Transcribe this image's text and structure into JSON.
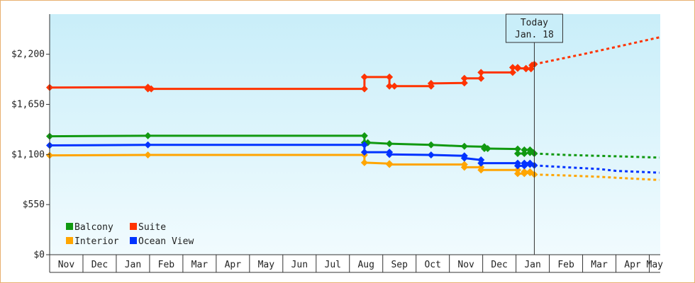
{
  "chart_data": {
    "type": "line",
    "y_ticks": [
      "$0",
      "$550",
      "$1,100",
      "$1,650",
      "$2,200"
    ],
    "ylim": [
      0,
      2640
    ],
    "months": [
      "Nov",
      "Dec",
      "Jan",
      "Feb",
      "Mar",
      "Apr",
      "May",
      "Jun",
      "Jul",
      "Aug",
      "Sep",
      "Oct",
      "Nov",
      "Dec",
      "Jan",
      "Feb",
      "Mar",
      "Apr",
      "May"
    ],
    "x_range_month_index": [
      0,
      18.33
    ],
    "today": {
      "line1": "Today",
      "line2": "Jan. 18",
      "month_index": 14.55
    },
    "legend": [
      {
        "label": "Balcony",
        "color": "#119911"
      },
      {
        "label": "Suite",
        "color": "#ff3300"
      },
      {
        "label": "Interior",
        "color": "#ffa500"
      },
      {
        "label": "Ocean View",
        "color": "#0033ff"
      }
    ],
    "series": [
      {
        "name": "Balcony",
        "color": "#119911",
        "points": [
          [
            0.0,
            1300
          ],
          [
            2.95,
            1305
          ],
          [
            9.45,
            1305
          ],
          [
            9.45,
            1230
          ],
          [
            9.55,
            1230
          ],
          [
            10.2,
            1218
          ],
          [
            11.45,
            1205
          ],
          [
            12.45,
            1190
          ],
          [
            13.05,
            1185
          ],
          [
            13.05,
            1165
          ],
          [
            13.15,
            1165
          ],
          [
            14.05,
            1160
          ],
          [
            14.05,
            1110
          ],
          [
            14.25,
            1110
          ],
          [
            14.25,
            1150
          ],
          [
            14.42,
            1150
          ],
          [
            14.42,
            1120
          ],
          [
            14.52,
            1120
          ],
          [
            14.55,
            1110
          ]
        ],
        "projection": [
          [
            14.55,
            1110
          ],
          [
            15.5,
            1095
          ],
          [
            16.5,
            1085
          ],
          [
            17.0,
            1080
          ],
          [
            18.3,
            1065
          ]
        ]
      },
      {
        "name": "Suite",
        "color": "#ff3300",
        "points": [
          [
            0.0,
            1835
          ],
          [
            2.95,
            1838
          ],
          [
            2.95,
            1820
          ],
          [
            3.05,
            1820
          ],
          [
            9.45,
            1820
          ],
          [
            9.45,
            1950
          ],
          [
            10.2,
            1950
          ],
          [
            10.2,
            1850
          ],
          [
            10.35,
            1850
          ],
          [
            11.45,
            1850
          ],
          [
            11.45,
            1880
          ],
          [
            12.45,
            1885
          ],
          [
            12.45,
            1935
          ],
          [
            12.95,
            1935
          ],
          [
            12.95,
            2000
          ],
          [
            13.9,
            2000
          ],
          [
            13.9,
            2055
          ],
          [
            14.05,
            2055
          ],
          [
            14.05,
            2045
          ],
          [
            14.3,
            2045
          ],
          [
            14.3,
            2040
          ],
          [
            14.45,
            2040
          ],
          [
            14.48,
            2080
          ],
          [
            14.55,
            2090
          ]
        ],
        "projection": [
          [
            14.55,
            2090
          ],
          [
            16.0,
            2200
          ],
          [
            17.0,
            2280
          ],
          [
            18.3,
            2385
          ]
        ]
      },
      {
        "name": "Interior",
        "color": "#ffa500",
        "points": [
          [
            0.0,
            1090
          ],
          [
            2.95,
            1095
          ],
          [
            9.45,
            1095
          ],
          [
            9.45,
            1010
          ],
          [
            10.2,
            1000
          ],
          [
            10.2,
            990
          ],
          [
            12.45,
            990
          ],
          [
            12.45,
            960
          ],
          [
            12.95,
            960
          ],
          [
            12.95,
            930
          ],
          [
            14.05,
            930
          ],
          [
            14.05,
            890
          ],
          [
            14.25,
            890
          ],
          [
            14.25,
            910
          ],
          [
            14.42,
            910
          ],
          [
            14.42,
            900
          ],
          [
            14.55,
            880
          ]
        ],
        "projection": [
          [
            14.55,
            880
          ],
          [
            15.5,
            870
          ],
          [
            16.5,
            855
          ],
          [
            17.0,
            845
          ],
          [
            18.3,
            820
          ]
        ]
      },
      {
        "name": "Ocean View",
        "color": "#0033ff",
        "points": [
          [
            0.0,
            1200
          ],
          [
            2.95,
            1205
          ],
          [
            9.45,
            1205
          ],
          [
            9.45,
            1125
          ],
          [
            10.2,
            1125
          ],
          [
            10.2,
            1100
          ],
          [
            11.45,
            1095
          ],
          [
            12.45,
            1085
          ],
          [
            12.45,
            1060
          ],
          [
            12.95,
            1040
          ],
          [
            12.95,
            1005
          ],
          [
            14.05,
            1005
          ],
          [
            14.05,
            975
          ],
          [
            14.25,
            975
          ],
          [
            14.25,
            1005
          ],
          [
            14.42,
            1005
          ],
          [
            14.42,
            990
          ],
          [
            14.55,
            980
          ]
        ],
        "projection": [
          [
            14.55,
            980
          ],
          [
            15.5,
            960
          ],
          [
            16.5,
            940
          ],
          [
            17.0,
            920
          ],
          [
            18.3,
            900
          ]
        ]
      }
    ]
  }
}
